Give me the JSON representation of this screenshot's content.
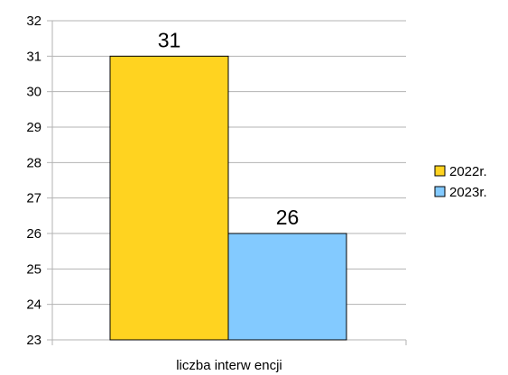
{
  "chart_data": {
    "type": "bar",
    "categories": [
      "liczba interw encji"
    ],
    "series": [
      {
        "name": "2022r.",
        "values": [
          31
        ],
        "color": "#FFD320"
      },
      {
        "name": "2023r.",
        "values": [
          26
        ],
        "color": "#83CAFF"
      }
    ],
    "ylim": [
      23,
      32
    ],
    "yticks": [
      23,
      24,
      25,
      26,
      27,
      28,
      29,
      30,
      31,
      32
    ],
    "data_labels": [
      "31",
      "26"
    ],
    "grid": true,
    "legend": "right"
  }
}
